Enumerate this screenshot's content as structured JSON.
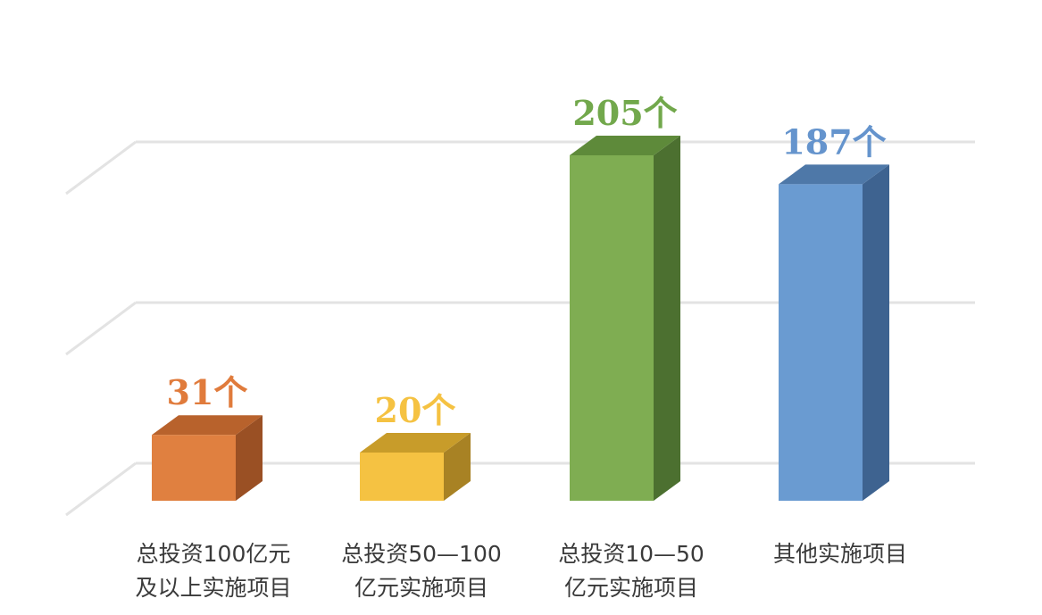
{
  "chart_data": {
    "type": "bar",
    "style": "3d-column",
    "categories": [
      [
        "总投资100亿元",
        "及以上实施项目"
      ],
      [
        "总投资50—100",
        "亿元实施项目"
      ],
      [
        "总投资10—50",
        "亿元实施项目"
      ],
      [
        "其他实施项目"
      ]
    ],
    "values": [
      31,
      20,
      205,
      187
    ],
    "value_labels": [
      "31个",
      "20个",
      "205个",
      "187个"
    ],
    "ylim": [
      0,
      200
    ],
    "grid": true,
    "legend": "none",
    "colors": {
      "bars": [
        "#e08040",
        "#f5c242",
        "#7fad52",
        "#6a9bd1"
      ],
      "bar_tops": [
        "#b8622c",
        "#c89c2a",
        "#5e8a3a",
        "#4e78a8"
      ],
      "bar_sides": [
        "#9a5024",
        "#a88224",
        "#4c7030",
        "#3e6390"
      ],
      "labels": [
        "#e07b3c",
        "#f5c242",
        "#72a84c",
        "#6594cd"
      ],
      "grid": "#e3e3e3"
    }
  }
}
